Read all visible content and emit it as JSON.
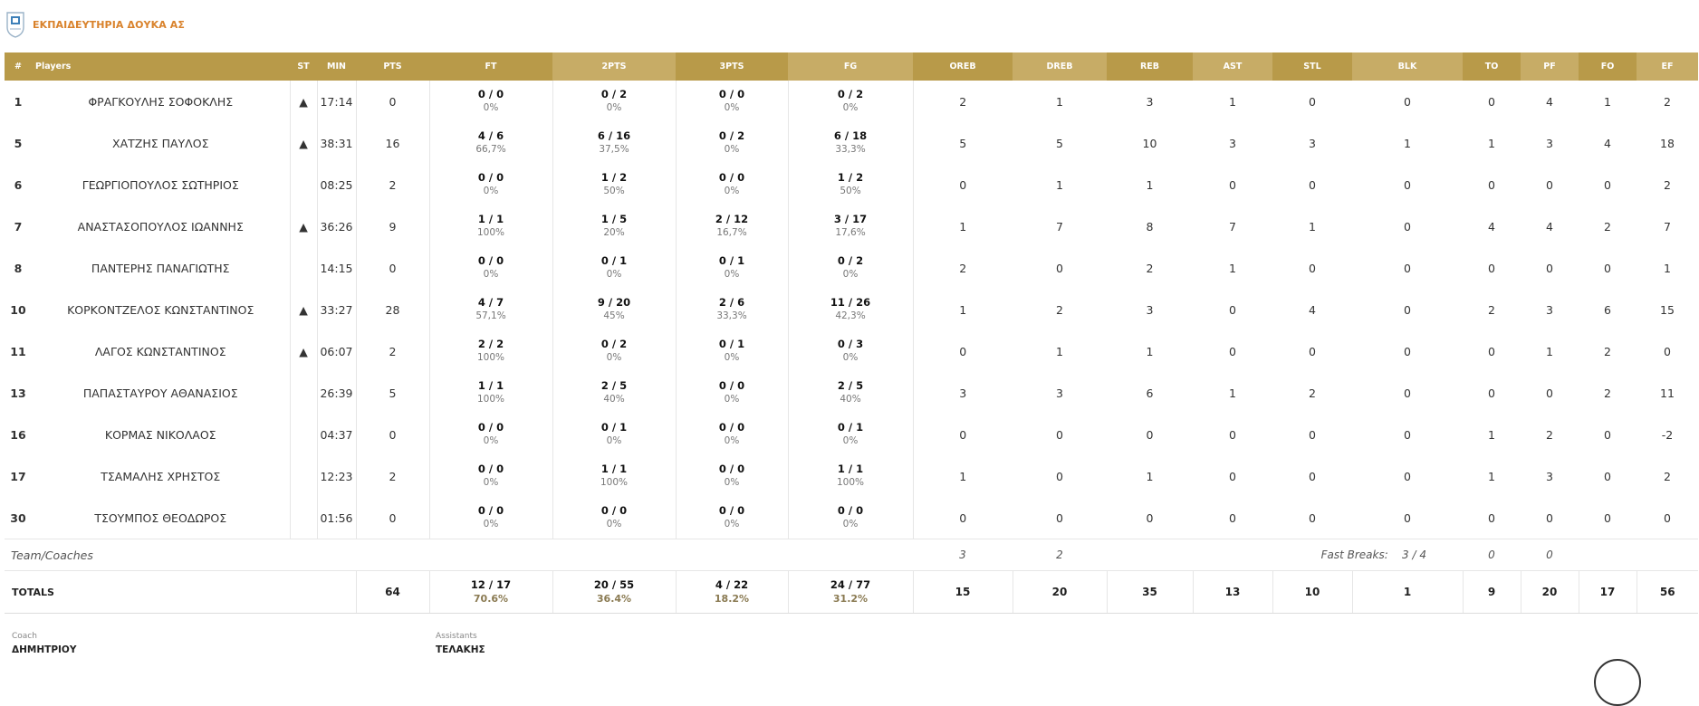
{
  "team": {
    "name": "ΕΚΠΑΙΔΕΥΤΗΡΙΑ ΔΟΥΚΑ ΑΣ",
    "logo_icon": "team-logo-shield-icon",
    "accent_color": "#d9822b"
  },
  "header_color_dark": "#b89a49",
  "header_color_light": "#c7ac66",
  "columns": [
    "#",
    "Players",
    "ST",
    "MIN",
    "PTS",
    "FT",
    "2PTS",
    "3PTS",
    "FG",
    "OREB",
    "DREB",
    "REB",
    "AST",
    "STL",
    "BLK",
    "TO",
    "PF",
    "FO",
    "EF"
  ],
  "players": [
    {
      "num": "1",
      "name": "ΦΡΑΓΚΟΥΛΗΣ ΣΟΦΟΚΛΗΣ",
      "st": "▲",
      "min": "17:14",
      "pts": "0",
      "ft": "0 / 0",
      "ft_pct": "0%",
      "p2": "0 / 2",
      "p2_pct": "0%",
      "p3": "0 / 0",
      "p3_pct": "0%",
      "fg": "0 / 2",
      "fg_pct": "0%",
      "oreb": "2",
      "dreb": "1",
      "reb": "3",
      "ast": "1",
      "stl": "0",
      "blk": "0",
      "to": "0",
      "pf": "4",
      "fo": "1",
      "ef": "2"
    },
    {
      "num": "5",
      "name": "ΧΑΤΖΗΣ ΠΑΥΛΟΣ",
      "st": "▲",
      "min": "38:31",
      "pts": "16",
      "ft": "4 / 6",
      "ft_pct": "66,7%",
      "p2": "6 / 16",
      "p2_pct": "37,5%",
      "p3": "0 / 2",
      "p3_pct": "0%",
      "fg": "6 / 18",
      "fg_pct": "33,3%",
      "oreb": "5",
      "dreb": "5",
      "reb": "10",
      "ast": "3",
      "stl": "3",
      "blk": "1",
      "to": "1",
      "pf": "3",
      "fo": "4",
      "ef": "18"
    },
    {
      "num": "6",
      "name": "ΓΕΩΡΓΙΟΠΟΥΛΟΣ ΣΩΤΗΡΙΟΣ",
      "st": "",
      "min": "08:25",
      "pts": "2",
      "ft": "0 / 0",
      "ft_pct": "0%",
      "p2": "1 / 2",
      "p2_pct": "50%",
      "p3": "0 / 0",
      "p3_pct": "0%",
      "fg": "1 / 2",
      "fg_pct": "50%",
      "oreb": "0",
      "dreb": "1",
      "reb": "1",
      "ast": "0",
      "stl": "0",
      "blk": "0",
      "to": "0",
      "pf": "0",
      "fo": "0",
      "ef": "2"
    },
    {
      "num": "7",
      "name": "ΑΝΑΣΤΑΣΟΠΟΥΛΟΣ ΙΩΑΝΝΗΣ",
      "st": "▲",
      "min": "36:26",
      "pts": "9",
      "ft": "1 / 1",
      "ft_pct": "100%",
      "p2": "1 / 5",
      "p2_pct": "20%",
      "p3": "2 / 12",
      "p3_pct": "16,7%",
      "fg": "3 / 17",
      "fg_pct": "17,6%",
      "oreb": "1",
      "dreb": "7",
      "reb": "8",
      "ast": "7",
      "stl": "1",
      "blk": "0",
      "to": "4",
      "pf": "4",
      "fo": "2",
      "ef": "7"
    },
    {
      "num": "8",
      "name": "ΠΑΝΤΕΡΗΣ ΠΑΝΑΓΙΩΤΗΣ",
      "st": "",
      "min": "14:15",
      "pts": "0",
      "ft": "0 / 0",
      "ft_pct": "0%",
      "p2": "0 / 1",
      "p2_pct": "0%",
      "p3": "0 / 1",
      "p3_pct": "0%",
      "fg": "0 / 2",
      "fg_pct": "0%",
      "oreb": "2",
      "dreb": "0",
      "reb": "2",
      "ast": "1",
      "stl": "0",
      "blk": "0",
      "to": "0",
      "pf": "0",
      "fo": "0",
      "ef": "1"
    },
    {
      "num": "10",
      "name": "ΚΟΡΚΟΝΤΖΕΛΟΣ ΚΩΝΣΤΑΝΤΙΝΟΣ",
      "st": "▲",
      "min": "33:27",
      "pts": "28",
      "ft": "4 / 7",
      "ft_pct": "57,1%",
      "p2": "9 / 20",
      "p2_pct": "45%",
      "p3": "2 / 6",
      "p3_pct": "33,3%",
      "fg": "11 / 26",
      "fg_pct": "42,3%",
      "oreb": "1",
      "dreb": "2",
      "reb": "3",
      "ast": "0",
      "stl": "4",
      "blk": "0",
      "to": "2",
      "pf": "3",
      "fo": "6",
      "ef": "15"
    },
    {
      "num": "11",
      "name": "ΛΑΓΟΣ ΚΩΝΣΤΑΝΤΙΝΟΣ",
      "st": "▲",
      "min": "06:07",
      "pts": "2",
      "ft": "2 / 2",
      "ft_pct": "100%",
      "p2": "0 / 2",
      "p2_pct": "0%",
      "p3": "0 / 1",
      "p3_pct": "0%",
      "fg": "0 / 3",
      "fg_pct": "0%",
      "oreb": "0",
      "dreb": "1",
      "reb": "1",
      "ast": "0",
      "stl": "0",
      "blk": "0",
      "to": "0",
      "pf": "1",
      "fo": "2",
      "ef": "0"
    },
    {
      "num": "13",
      "name": "ΠΑΠΑΣΤΑΥΡΟΥ ΑΘΑΝΑΣΙΟΣ",
      "st": "",
      "min": "26:39",
      "pts": "5",
      "ft": "1 / 1",
      "ft_pct": "100%",
      "p2": "2 / 5",
      "p2_pct": "40%",
      "p3": "0 / 0",
      "p3_pct": "0%",
      "fg": "2 / 5",
      "fg_pct": "40%",
      "oreb": "3",
      "dreb": "3",
      "reb": "6",
      "ast": "1",
      "stl": "2",
      "blk": "0",
      "to": "0",
      "pf": "0",
      "fo": "2",
      "ef": "11"
    },
    {
      "num": "16",
      "name": "ΚΟΡΜΑΣ ΝΙΚΟΛΑΟΣ",
      "st": "",
      "min": "04:37",
      "pts": "0",
      "ft": "0 / 0",
      "ft_pct": "0%",
      "p2": "0 / 1",
      "p2_pct": "0%",
      "p3": "0 / 0",
      "p3_pct": "0%",
      "fg": "0 / 1",
      "fg_pct": "0%",
      "oreb": "0",
      "dreb": "0",
      "reb": "0",
      "ast": "0",
      "stl": "0",
      "blk": "0",
      "to": "1",
      "pf": "2",
      "fo": "0",
      "ef": "-2"
    },
    {
      "num": "17",
      "name": "ΤΣΑΜΑΛΗΣ ΧΡΗΣΤΟΣ",
      "st": "",
      "min": "12:23",
      "pts": "2",
      "ft": "0 / 0",
      "ft_pct": "0%",
      "p2": "1 / 1",
      "p2_pct": "100%",
      "p3": "0 / 0",
      "p3_pct": "0%",
      "fg": "1 / 1",
      "fg_pct": "100%",
      "oreb": "1",
      "dreb": "0",
      "reb": "1",
      "ast": "0",
      "stl": "0",
      "blk": "0",
      "to": "1",
      "pf": "3",
      "fo": "0",
      "ef": "2"
    },
    {
      "num": "30",
      "name": "ΤΣΟΥΜΠΟΣ ΘΕΟΔΩΡΟΣ",
      "st": "",
      "min": "01:56",
      "pts": "0",
      "ft": "0 / 0",
      "ft_pct": "0%",
      "p2": "0 / 0",
      "p2_pct": "0%",
      "p3": "0 / 0",
      "p3_pct": "0%",
      "fg": "0 / 0",
      "fg_pct": "0%",
      "oreb": "0",
      "dreb": "0",
      "reb": "0",
      "ast": "0",
      "stl": "0",
      "blk": "0",
      "to": "0",
      "pf": "0",
      "fo": "0",
      "ef": "0"
    }
  ],
  "team_coaches": {
    "label": "Team/Coaches",
    "oreb": "3",
    "dreb": "2",
    "fast_breaks_label": "Fast Breaks:",
    "fast_breaks_value": "3 / 4",
    "to": "0",
    "pf": "0"
  },
  "totals": {
    "label": "TOTALS",
    "pts": "64",
    "ft": "12 / 17",
    "ft_pct": "70.6%",
    "p2": "20 / 55",
    "p2_pct": "36.4%",
    "p3": "4 / 22",
    "p3_pct": "18.2%",
    "fg": "24 / 77",
    "fg_pct": "31.2%",
    "oreb": "15",
    "dreb": "20",
    "reb": "35",
    "ast": "13",
    "stl": "10",
    "blk": "1",
    "to": "9",
    "pf": "20",
    "fo": "17",
    "ef": "56"
  },
  "coach": {
    "label": "Coach",
    "name": "ΔΗΜΗΤΡΙΟΥ"
  },
  "assistants": {
    "label": "Assistants",
    "name": "ΤΕΛΑΚΗΣ"
  }
}
